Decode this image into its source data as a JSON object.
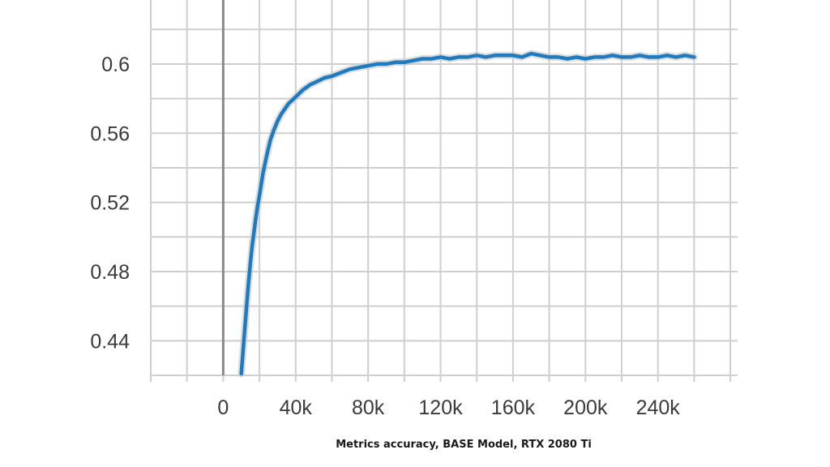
{
  "chart_data": {
    "type": "line",
    "caption": "Metrics accuracy, BASE Model, RTX 2080 Ti",
    "xlim": [
      -40000,
      284000
    ],
    "ylim": [
      0.42,
      0.637
    ],
    "x_ticks": [
      0,
      40000,
      80000,
      120000,
      160000,
      200000,
      240000
    ],
    "x_tick_labels": [
      "0",
      "40k",
      "80k",
      "120k",
      "160k",
      "200k",
      "240k"
    ],
    "y_ticks": [
      0.44,
      0.48,
      0.52,
      0.56,
      0.6
    ],
    "y_tick_labels": [
      "0.44",
      "0.48",
      "0.52",
      "0.56",
      "0.6"
    ],
    "x_grid_step": 20000,
    "y_grid_step": 0.02,
    "grid": true,
    "colors": {
      "line": "#1f7bc0",
      "line_shadow": "#c8c8c8",
      "grid": "#cfcfcf",
      "zero_axis": "#8a8a8a"
    },
    "series": [
      {
        "x": [
          10000,
          11000,
          12000,
          13000,
          14000,
          15000,
          16000,
          17000,
          18000,
          19000,
          20000,
          22000,
          24000,
          26000,
          28000,
          30000,
          32000,
          34000,
          36000,
          38000,
          40000,
          44000,
          48000,
          52000,
          56000,
          60000,
          65000,
          70000,
          75000,
          80000,
          85000,
          90000,
          95000,
          100000,
          105000,
          110000,
          115000,
          120000,
          125000,
          130000,
          135000,
          140000,
          145000,
          150000,
          155000,
          160000,
          165000,
          170000,
          175000,
          180000,
          185000,
          190000,
          195000,
          200000,
          205000,
          210000,
          215000,
          220000,
          225000,
          230000,
          235000,
          240000,
          245000,
          250000,
          255000,
          260000
        ],
        "y": [
          0.421,
          0.435,
          0.448,
          0.461,
          0.474,
          0.485,
          0.495,
          0.503,
          0.511,
          0.518,
          0.524,
          0.537,
          0.547,
          0.556,
          0.562,
          0.567,
          0.571,
          0.574,
          0.577,
          0.579,
          0.581,
          0.585,
          0.588,
          0.59,
          0.592,
          0.593,
          0.595,
          0.597,
          0.598,
          0.599,
          0.6,
          0.6,
          0.601,
          0.601,
          0.602,
          0.603,
          0.603,
          0.604,
          0.603,
          0.604,
          0.604,
          0.605,
          0.604,
          0.605,
          0.605,
          0.605,
          0.604,
          0.606,
          0.605,
          0.604,
          0.604,
          0.603,
          0.604,
          0.603,
          0.604,
          0.604,
          0.605,
          0.604,
          0.604,
          0.605,
          0.604,
          0.604,
          0.605,
          0.604,
          0.605,
          0.604
        ]
      }
    ]
  }
}
